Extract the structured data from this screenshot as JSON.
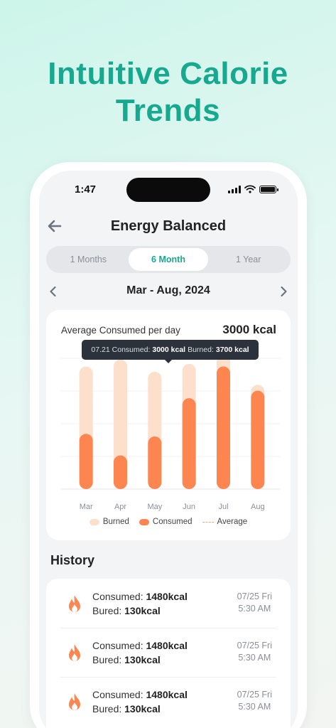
{
  "hero": {
    "line1": "Intuitive Calorie",
    "line2": "Trends"
  },
  "status_bar": {
    "time": "1:47"
  },
  "header": {
    "title": "Energy Balanced"
  },
  "tabs": [
    {
      "label": "1 Months",
      "active": false
    },
    {
      "label": "6 Month",
      "active": true
    },
    {
      "label": "1 Year",
      "active": false
    }
  ],
  "date_range": {
    "label": "Mar - Aug, 2024"
  },
  "summary": {
    "label": "Average Consumed per day",
    "value": "3000 kcal"
  },
  "tooltip": {
    "date": "07.21",
    "consumed_label": "Consumed:",
    "consumed_value": "3000 kcal",
    "burned_label": "Burned:",
    "burned_value": "3700 kcal"
  },
  "colors": {
    "accent": "#17a98f",
    "consumed": "#fd8550",
    "burned": "#fde0cb",
    "average": "#f4a57a"
  },
  "chart_data": {
    "type": "bar",
    "categories": [
      "Mar",
      "Apr",
      "May",
      "Jun",
      "Jul",
      "Aug"
    ],
    "series": [
      {
        "name": "Burned",
        "values": [
          3750,
          3970,
          3590,
          3830,
          4200,
          3190
        ]
      },
      {
        "name": "Consumed",
        "values": [
          1690,
          1030,
          1610,
          2780,
          3750,
          3010
        ]
      }
    ],
    "legend": [
      "Burned",
      "Consumed",
      "Average"
    ],
    "ylim": [
      0,
      4000
    ],
    "grid": true,
    "legend_position": "bottom"
  },
  "history": {
    "title": "History",
    "entries": [
      {
        "consumed_label": "Consumed:",
        "consumed_value": "1480kcal",
        "burned_label": "Bured:",
        "burned_value": "130kcal",
        "date": "07/25 Fri",
        "time": "5:30 AM"
      },
      {
        "consumed_label": "Consumed:",
        "consumed_value": "1480kcal",
        "burned_label": "Bured:",
        "burned_value": "130kcal",
        "date": "07/25 Fri",
        "time": "5:30 AM"
      },
      {
        "consumed_label": "Consumed:",
        "consumed_value": "1480kcal",
        "burned_label": "Bured:",
        "burned_value": "130kcal",
        "date": "07/25 Fri",
        "time": "5:30 AM"
      }
    ]
  }
}
